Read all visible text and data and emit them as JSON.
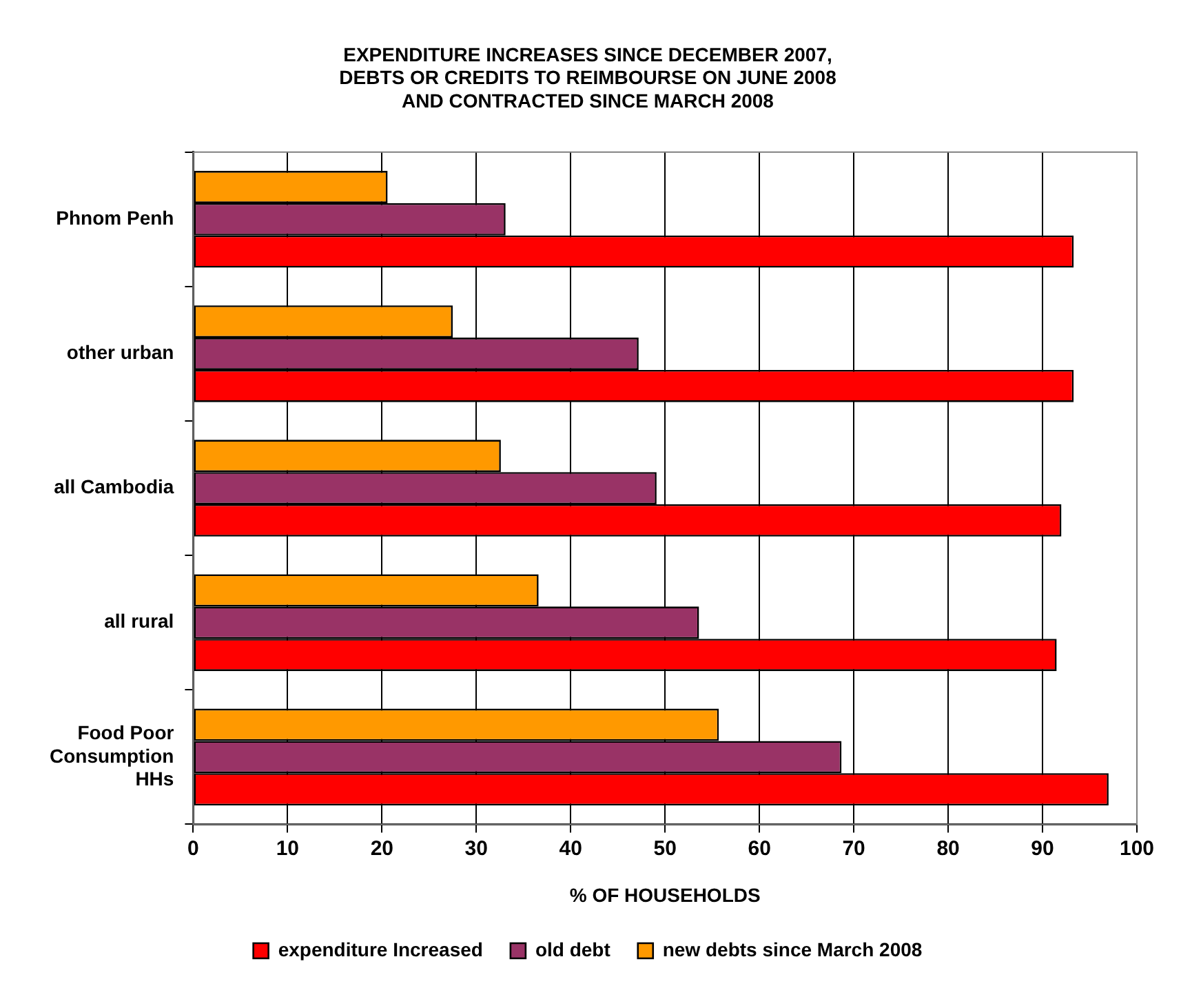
{
  "chart_data": {
    "type": "bar",
    "orientation": "horizontal",
    "title": "EXPENDITURE INCREASES SINCE DECEMBER 2007, DEBTS OR CREDITS TO REIMBOURSE ON JUNE 2008 AND CONTRACTED SINCE MARCH 2008",
    "xlabel": "% OF HOUSEHOLDS",
    "categories": [
      "Phnom Penh",
      "other urban",
      "all Cambodia",
      "all rural",
      "Food Poor Consumption HHs"
    ],
    "series": [
      {
        "name": "expenditure Increased",
        "color": "#ff0000",
        "values": [
          93.3,
          93.3,
          92.0,
          91.5,
          97.0
        ]
      },
      {
        "name": "old debt",
        "color": "#993366",
        "values": [
          33.1,
          47.2,
          49.1,
          53.6,
          68.7
        ]
      },
      {
        "name": "new debts since March 2008",
        "color": "#ff9900",
        "values": [
          20.6,
          27.5,
          32.6,
          36.6,
          55.7
        ]
      }
    ],
    "xlim": [
      0,
      100
    ],
    "xticks": [
      0,
      10,
      20,
      30,
      40,
      50,
      60,
      70,
      80,
      90,
      100
    ],
    "grid": "x",
    "legend": "bottom"
  }
}
